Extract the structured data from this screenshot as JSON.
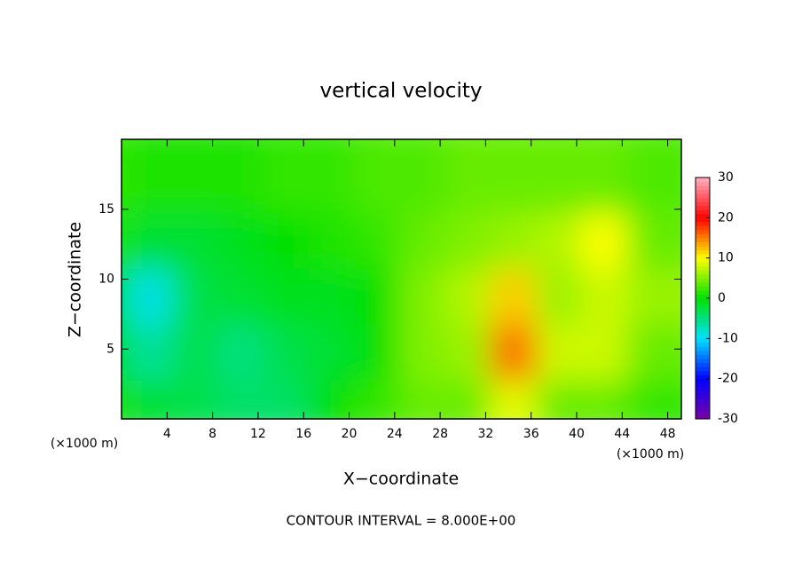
{
  "chart_data": {
    "type": "contour",
    "title": "vertical velocity",
    "x_label": "X−coordinate",
    "y_label": "Z−coordinate",
    "x_unit": "(×1000 m)",
    "y_unit": "(×1000 m)",
    "note": "CONTOUR INTERVAL = 8.000E+00",
    "xlim": [
      0,
      49.2
    ],
    "ylim": [
      0,
      20
    ],
    "xticks": [
      4,
      8,
      12,
      16,
      20,
      24,
      28,
      32,
      36,
      40,
      44,
      48
    ],
    "yticks": [
      5,
      10,
      15
    ],
    "field": {
      "x": [
        0,
        4,
        8,
        12,
        16,
        20,
        24,
        28,
        32,
        36,
        40,
        44,
        48
      ],
      "z": [
        2,
        6,
        10,
        14,
        18
      ],
      "values": [
        [
          1,
          -2,
          -3,
          -4,
          -4,
          0,
          2,
          4,
          4,
          9,
          4,
          4,
          2
        ],
        [
          0,
          -6,
          -3,
          -5,
          -3,
          -2,
          0,
          5,
          6,
          16,
          8,
          8,
          4
        ],
        [
          0,
          -9,
          -3,
          -2,
          -1,
          -1,
          0,
          5,
          7,
          12,
          6,
          8,
          6
        ],
        [
          1,
          -2,
          -2,
          -1,
          0,
          1,
          2,
          4,
          5,
          6,
          7,
          10,
          4
        ],
        [
          2,
          1,
          1,
          1,
          2,
          2,
          3,
          3,
          4,
          4,
          4,
          4,
          3
        ]
      ]
    },
    "clim": [
      -30,
      30
    ],
    "cticks": [
      -30,
      -20,
      -10,
      0,
      10,
      20,
      30
    ],
    "colormap": [
      "#7a00a8",
      "#0000ff",
      "#00e0ff",
      "#00e000",
      "#ffff00",
      "#ff0000",
      "#ffb0c0"
    ]
  }
}
